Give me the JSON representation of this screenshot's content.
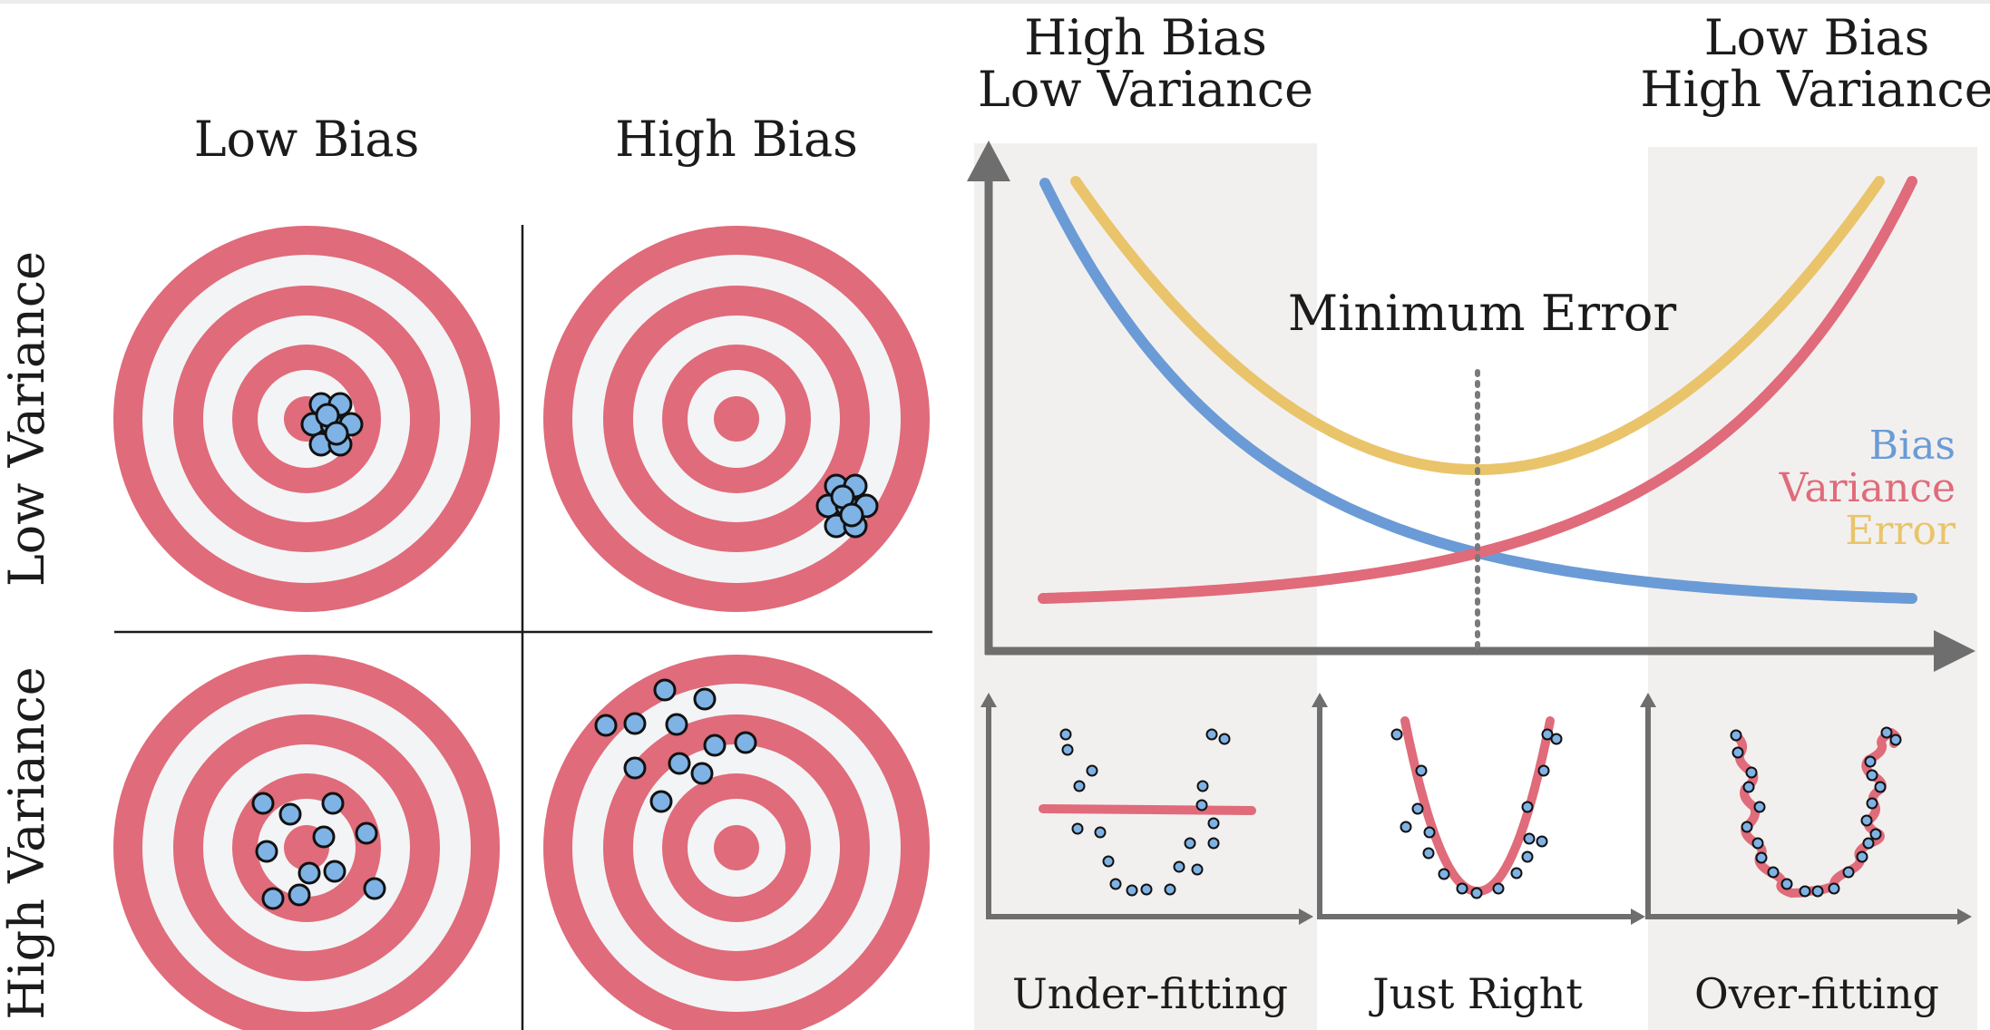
{
  "targets": {
    "col_labels": [
      "Low Bias",
      "High Bias"
    ],
    "row_labels": [
      "Low Variance",
      "High Variance"
    ]
  },
  "tradeoff": {
    "left_region_label": [
      "High Bias",
      "Low Variance"
    ],
    "right_region_label": [
      "Low Bias",
      "High Variance"
    ],
    "min_error_label": "Minimum Error",
    "legend": [
      {
        "label": "Bias",
        "color": "#6b9bd6"
      },
      {
        "label": "Variance",
        "color": "#e06b7a"
      },
      {
        "label": "Error",
        "color": "#e9c46a"
      }
    ]
  },
  "fit_examples": [
    "Under-fitting",
    "Just Right",
    "Over-fitting"
  ],
  "colors": {
    "ring_red": "#e06b7a",
    "ring_white": "#f3f4f6",
    "dot_fill": "#7fb2e5",
    "axis_gray": "#6e6e6e",
    "shade": "#f2f0ef"
  },
  "chart_data": {
    "type": "line",
    "title": "",
    "xlabel": "",
    "ylabel": "",
    "x": [
      0,
      0.1,
      0.2,
      0.3,
      0.4,
      0.5,
      0.6,
      0.7,
      0.8,
      0.9,
      1.0
    ],
    "series": [
      {
        "name": "Bias",
        "values": [
          1.0,
          0.69,
          0.45,
          0.29,
          0.17,
          0.12,
          0.08,
          0.05,
          0.03,
          0.02,
          0.0
        ]
      },
      {
        "name": "Variance",
        "values": [
          0.0,
          0.01,
          0.02,
          0.04,
          0.08,
          0.12,
          0.19,
          0.29,
          0.45,
          0.69,
          0.98
        ]
      },
      {
        "name": "Error",
        "values": [
          1.0,
          0.71,
          0.48,
          0.33,
          0.25,
          0.23,
          0.26,
          0.35,
          0.51,
          0.73,
          1.0
        ]
      }
    ],
    "minimum_x": 0.5
  }
}
